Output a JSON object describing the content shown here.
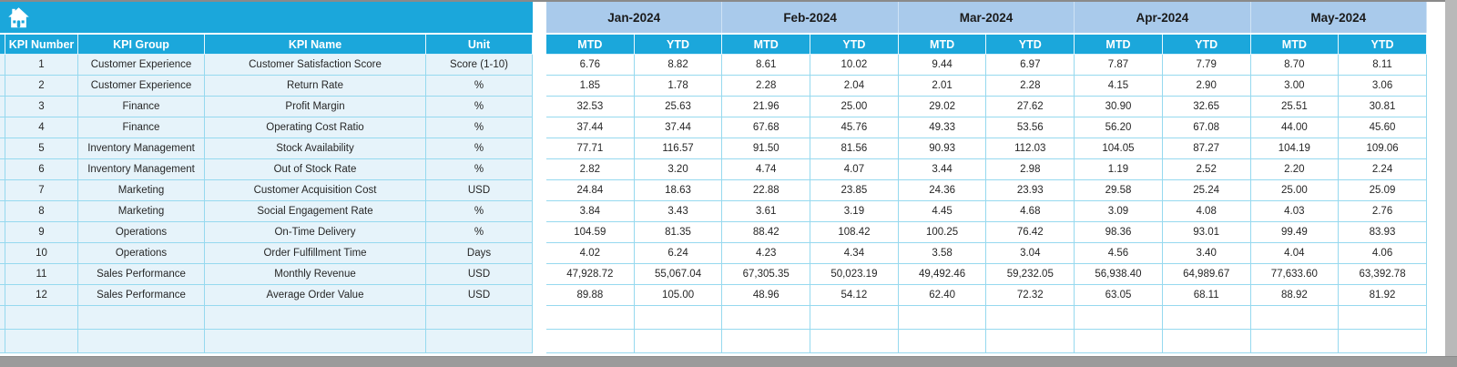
{
  "colors": {
    "header_cyan": "#1BA7DB",
    "month_blue": "#A9CAEB",
    "row_blue": "#E6F3FA",
    "cell_white": "#FFFFFF",
    "grid_line": "#96D9EF",
    "month_text": "#1B1B1B",
    "data_text": "#262626",
    "frame_gray": "#9B9B9B"
  },
  "table": {
    "corner_icon": "home",
    "left_headers": [
      "KPI Number",
      "KPI Group",
      "KPI Name",
      "Unit"
    ],
    "months": [
      "Jan-2024",
      "Feb-2024",
      "Mar-2024",
      "Apr-2024",
      "May-2024"
    ],
    "sub_headers": [
      "MTD",
      "YTD"
    ],
    "empty_row_count": 2,
    "rows": [
      {
        "number": "1",
        "group": "Customer Experience",
        "name": "Customer Satisfaction Score",
        "unit": "Score (1-10)",
        "values": [
          "6.76",
          "8.82",
          "8.61",
          "10.02",
          "9.44",
          "6.97",
          "7.87",
          "7.79",
          "8.70",
          "8.11"
        ]
      },
      {
        "number": "2",
        "group": "Customer Experience",
        "name": "Return Rate",
        "unit": "%",
        "values": [
          "1.85",
          "1.78",
          "2.28",
          "2.04",
          "2.01",
          "2.28",
          "4.15",
          "2.90",
          "3.00",
          "3.06"
        ]
      },
      {
        "number": "3",
        "group": "Finance",
        "name": "Profit Margin",
        "unit": "%",
        "values": [
          "32.53",
          "25.63",
          "21.96",
          "25.00",
          "29.02",
          "27.62",
          "30.90",
          "32.65",
          "25.51",
          "30.81"
        ]
      },
      {
        "number": "4",
        "group": "Finance",
        "name": "Operating Cost Ratio",
        "unit": "%",
        "values": [
          "37.44",
          "37.44",
          "67.68",
          "45.76",
          "49.33",
          "53.56",
          "56.20",
          "67.08",
          "44.00",
          "45.60"
        ]
      },
      {
        "number": "5",
        "group": "Inventory Management",
        "name": "Stock Availability",
        "unit": "%",
        "values": [
          "77.71",
          "116.57",
          "91.50",
          "81.56",
          "90.93",
          "112.03",
          "104.05",
          "87.27",
          "104.19",
          "109.06"
        ]
      },
      {
        "number": "6",
        "group": "Inventory Management",
        "name": "Out of Stock Rate",
        "unit": "%",
        "values": [
          "2.82",
          "3.20",
          "4.74",
          "4.07",
          "3.44",
          "2.98",
          "1.19",
          "2.52",
          "2.20",
          "2.24"
        ]
      },
      {
        "number": "7",
        "group": "Marketing",
        "name": "Customer Acquisition Cost",
        "unit": "USD",
        "values": [
          "24.84",
          "18.63",
          "22.88",
          "23.85",
          "24.36",
          "23.93",
          "29.58",
          "25.24",
          "25.00",
          "25.09"
        ]
      },
      {
        "number": "8",
        "group": "Marketing",
        "name": "Social Engagement Rate",
        "unit": "%",
        "values": [
          "3.84",
          "3.43",
          "3.61",
          "3.19",
          "4.45",
          "4.68",
          "3.09",
          "4.08",
          "4.03",
          "2.76"
        ]
      },
      {
        "number": "9",
        "group": "Operations",
        "name": "On-Time Delivery",
        "unit": "%",
        "values": [
          "104.59",
          "81.35",
          "88.42",
          "108.42",
          "100.25",
          "76.42",
          "98.36",
          "93.01",
          "99.49",
          "83.93"
        ]
      },
      {
        "number": "10",
        "group": "Operations",
        "name": "Order Fulfillment Time",
        "unit": "Days",
        "values": [
          "4.02",
          "6.24",
          "4.23",
          "4.34",
          "3.58",
          "3.04",
          "4.56",
          "3.40",
          "4.04",
          "4.06"
        ]
      },
      {
        "number": "11",
        "group": "Sales Performance",
        "name": "Monthly Revenue",
        "unit": "USD",
        "values": [
          "47,928.72",
          "55,067.04",
          "67,305.35",
          "50,023.19",
          "49,492.46",
          "59,232.05",
          "56,938.40",
          "64,989.67",
          "77,633.60",
          "63,392.78"
        ]
      },
      {
        "number": "12",
        "group": "Sales Performance",
        "name": "Average Order Value",
        "unit": "USD",
        "values": [
          "89.88",
          "105.00",
          "48.96",
          "54.12",
          "62.40",
          "72.32",
          "63.05",
          "68.11",
          "88.92",
          "81.92"
        ]
      }
    ]
  }
}
